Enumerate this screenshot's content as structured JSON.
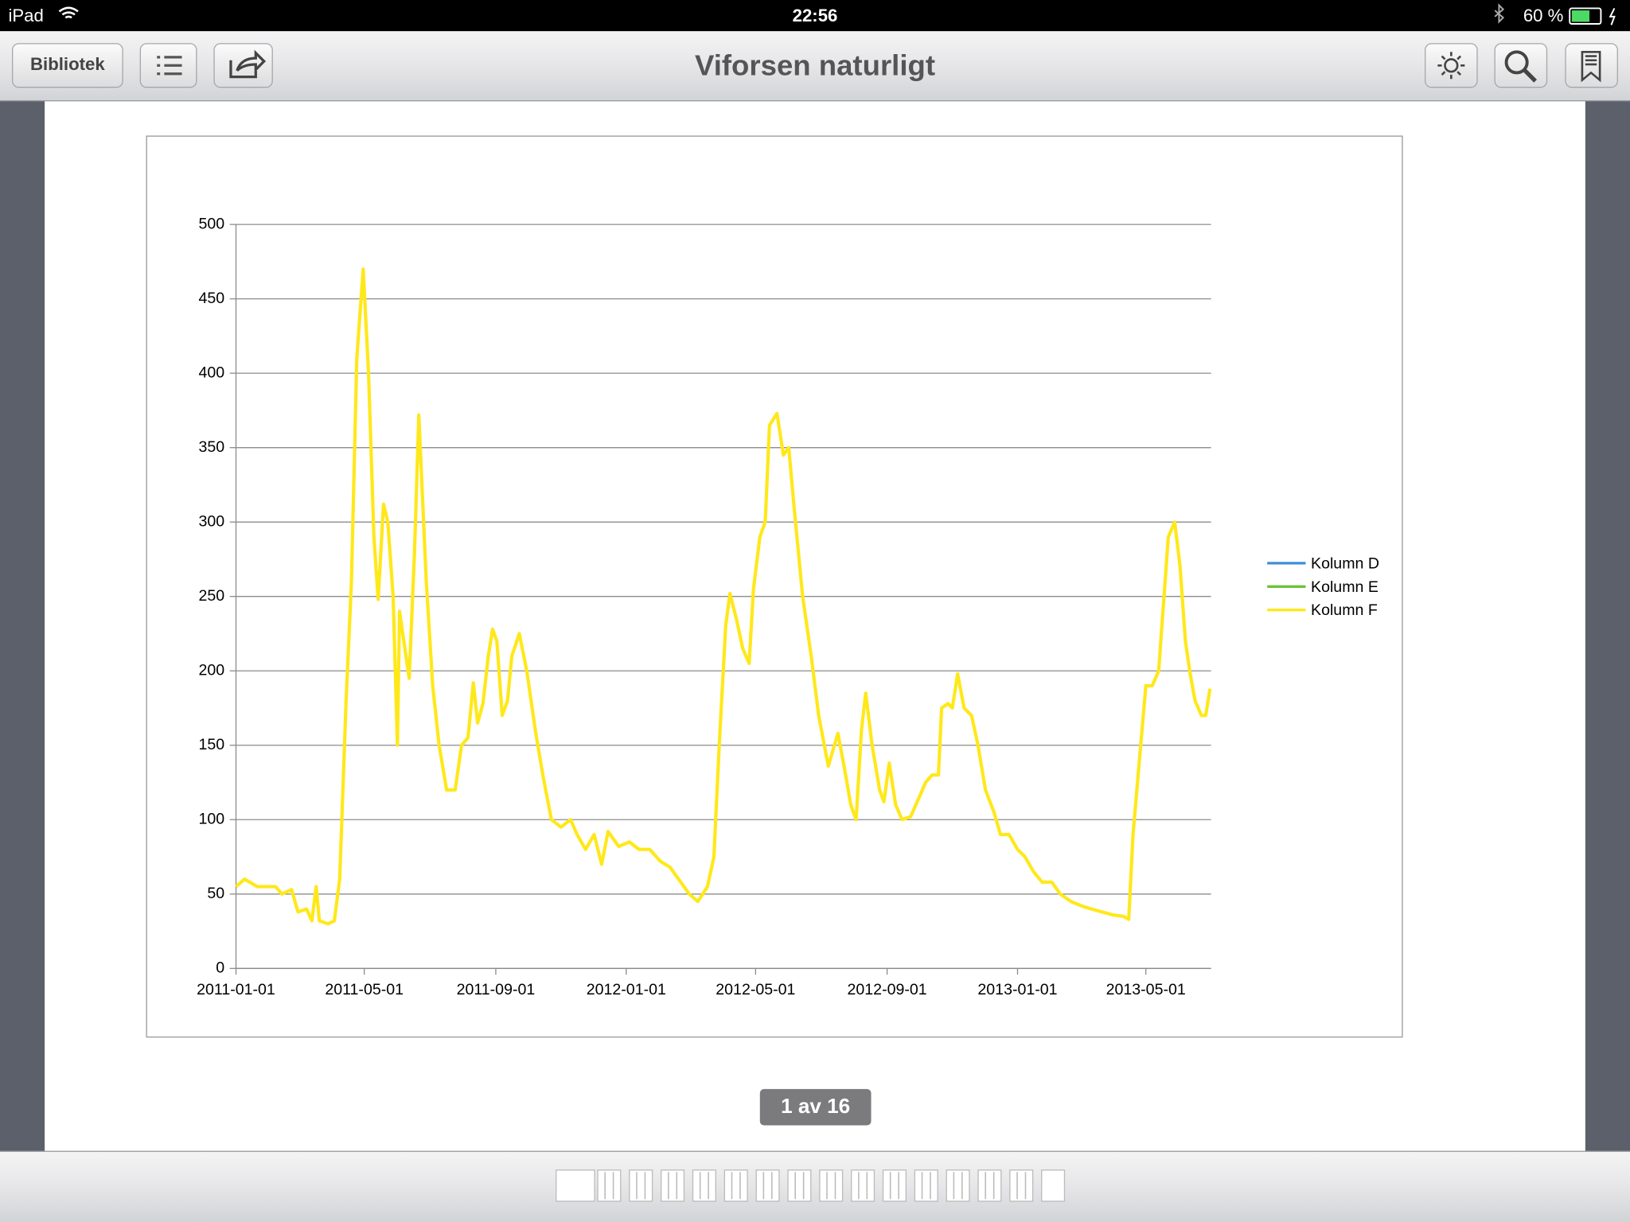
{
  "status_bar": {
    "device": "iPad",
    "time": "22:56",
    "battery": "60 %"
  },
  "toolbar": {
    "library_button": "Bibliotek",
    "title": "Viforsen naturligt"
  },
  "chart_data": {
    "type": "line",
    "x": [
      "2011-01-01",
      "2011-01-09",
      "2011-01-21",
      "2011-02-07",
      "2011-02-13",
      "2011-02-22",
      "2011-02-28",
      "2011-03-08",
      "2011-03-13",
      "2011-03-17",
      "2011-03-20",
      "2011-03-28",
      "2011-04-03",
      "2011-04-08",
      "2011-04-14",
      "2011-04-19",
      "2011-04-24",
      "2011-04-30",
      "2011-05-05",
      "2011-05-10",
      "2011-05-14",
      "2011-05-19",
      "2011-05-23",
      "2011-05-28",
      "2011-06-01",
      "2011-06-03",
      "2011-06-08",
      "2011-06-12",
      "2011-06-17",
      "2011-06-21",
      "2011-06-28",
      "2011-07-04",
      "2011-07-10",
      "2011-07-17",
      "2011-07-25",
      "2011-07-31",
      "2011-08-06",
      "2011-08-11",
      "2011-08-15",
      "2011-08-20",
      "2011-08-25",
      "2011-08-29",
      "2011-09-02",
      "2011-09-07",
      "2011-09-12",
      "2011-09-16",
      "2011-09-23",
      "2011-09-30",
      "2011-10-08",
      "2011-10-15",
      "2011-10-23",
      "2011-11-01",
      "2011-11-10",
      "2011-11-16",
      "2011-11-24",
      "2011-12-02",
      "2011-12-09",
      "2011-12-15",
      "2011-12-25",
      "2012-01-04",
      "2012-01-13",
      "2012-01-23",
      "2012-02-02",
      "2012-02-11",
      "2012-02-21",
      "2012-02-29",
      "2012-03-08",
      "2012-03-17",
      "2012-03-23",
      "2012-03-28",
      "2012-04-03",
      "2012-04-07",
      "2012-04-13",
      "2012-04-19",
      "2012-04-25",
      "2012-04-29",
      "2012-05-05",
      "2012-05-10",
      "2012-05-14",
      "2012-05-21",
      "2012-05-27",
      "2012-06-01",
      "2012-06-06",
      "2012-06-14",
      "2012-06-22",
      "2012-06-29",
      "2012-07-08",
      "2012-07-17",
      "2012-07-23",
      "2012-07-29",
      "2012-08-03",
      "2012-08-08",
      "2012-08-12",
      "2012-08-18",
      "2012-08-25",
      "2012-08-29",
      "2012-09-03",
      "2012-09-09",
      "2012-09-15",
      "2012-09-23",
      "2012-10-01",
      "2012-10-07",
      "2012-10-13",
      "2012-10-19",
      "2012-10-22",
      "2012-10-28",
      "2012-11-01",
      "2012-11-06",
      "2012-11-12",
      "2012-11-19",
      "2012-11-25",
      "2012-12-02",
      "2012-12-10",
      "2012-12-16",
      "2012-12-24",
      "2013-01-01",
      "2013-01-08",
      "2013-01-16",
      "2013-01-24",
      "2013-02-02",
      "2013-02-10",
      "2013-02-20",
      "2013-03-02",
      "2013-03-11",
      "2013-03-21",
      "2013-03-31",
      "2013-04-10",
      "2013-04-15",
      "2013-04-19",
      "2013-04-25",
      "2013-05-01",
      "2013-05-07",
      "2013-05-13",
      "2013-05-17",
      "2013-05-22",
      "2013-05-28",
      "2013-06-02",
      "2013-06-07",
      "2013-06-11",
      "2013-06-16",
      "2013-06-22",
      "2013-06-26",
      "2013-06-30"
    ],
    "series": [
      {
        "name": "Kolumn D",
        "color": "#3d8fd6",
        "values": [
          null,
          null,
          null,
          null,
          null,
          null,
          null,
          null,
          null,
          null,
          null,
          null,
          null,
          null,
          null,
          null,
          null,
          null,
          null,
          null,
          null,
          null,
          null,
          null,
          null,
          null,
          null,
          null,
          null,
          null,
          null,
          null,
          null,
          null,
          null,
          null,
          null,
          null,
          null,
          null,
          null,
          null,
          null,
          null,
          null,
          null,
          null,
          null,
          null,
          null,
          null,
          null,
          null,
          null,
          null,
          null,
          null,
          null,
          null,
          null,
          null,
          null,
          null,
          null,
          null,
          null,
          null,
          null,
          null,
          null,
          null,
          null,
          null,
          null,
          null,
          null,
          null,
          null,
          null,
          null,
          null,
          null,
          null,
          null,
          null,
          null,
          null,
          null,
          null,
          null,
          null,
          null,
          null,
          null,
          null,
          null,
          null,
          null,
          null,
          null,
          null,
          null,
          null,
          null,
          null,
          null,
          null,
          null,
          null,
          null,
          null,
          null,
          null,
          null,
          null,
          null,
          null,
          null,
          null,
          null,
          null,
          null,
          null,
          null,
          null,
          null,
          null,
          null,
          null,
          null,
          null,
          null,
          null,
          null,
          null,
          null,
          null,
          null,
          null,
          null,
          null,
          null,
          null
        ]
      },
      {
        "name": "Kolumn E",
        "color": "#6cc23a",
        "values": [
          null,
          null,
          null,
          null,
          null,
          null,
          null,
          null,
          null,
          null,
          null,
          null,
          null,
          null,
          null,
          null,
          null,
          null,
          null,
          null,
          null,
          null,
          null,
          null,
          null,
          null,
          null,
          null,
          null,
          null,
          null,
          null,
          null,
          null,
          null,
          null,
          null,
          null,
          null,
          null,
          null,
          null,
          null,
          null,
          null,
          null,
          null,
          null,
          null,
          null,
          null,
          null,
          null,
          null,
          null,
          null,
          null,
          null,
          null,
          null,
          null,
          null,
          null,
          null,
          null,
          null,
          null,
          null,
          null,
          null,
          null,
          null,
          null,
          null,
          null,
          null,
          null,
          null,
          null,
          null,
          null,
          null,
          null,
          null,
          null,
          null,
          null,
          null,
          null,
          null,
          null,
          null,
          null,
          null,
          null,
          null,
          null,
          null,
          null,
          null,
          null,
          null,
          null,
          null,
          null,
          null,
          null,
          null,
          null,
          null,
          null,
          null,
          null,
          null,
          null,
          null,
          null,
          null,
          null,
          null,
          null,
          null,
          null,
          null,
          null,
          null,
          null,
          null,
          null,
          null,
          null,
          null,
          null,
          null,
          null,
          null,
          null,
          null,
          null,
          null,
          null,
          null,
          null
        ]
      },
      {
        "name": "Kolumn F",
        "color": "#ffe81a",
        "values": [
          55,
          60,
          55,
          55,
          50,
          53,
          38,
          40,
          32,
          55,
          32,
          30,
          32,
          60,
          180,
          260,
          410,
          470,
          400,
          290,
          248,
          312,
          300,
          250,
          150,
          240,
          215,
          195,
          280,
          372,
          260,
          190,
          150,
          120,
          120,
          150,
          155,
          192,
          165,
          178,
          210,
          228,
          220,
          170,
          180,
          210,
          225,
          200,
          160,
          130,
          100,
          95,
          100,
          90,
          80,
          90,
          70,
          92,
          82,
          85,
          80,
          80,
          72,
          68,
          58,
          50,
          45,
          55,
          75,
          150,
          230,
          252,
          235,
          215,
          205,
          255,
          290,
          300,
          365,
          373,
          345,
          350,
          310,
          250,
          210,
          170,
          136,
          158,
          135,
          110,
          100,
          160,
          185,
          150,
          120,
          112,
          138,
          110,
          100,
          102,
          115,
          125,
          130,
          130,
          175,
          178,
          175,
          198,
          175,
          170,
          150,
          120,
          105,
          90,
          90,
          80,
          75,
          65,
          58,
          58,
          50,
          45,
          42,
          40,
          38,
          36,
          35,
          33,
          90,
          140,
          190,
          190,
          200,
          240,
          290,
          300,
          270,
          220,
          200,
          180,
          170,
          170,
          188
        ]
      }
    ],
    "xlim": [
      "2011-01-01",
      "2013-07-01"
    ],
    "xticks": [
      "2011-01-01",
      "2011-05-01",
      "2011-09-01",
      "2012-01-01",
      "2012-05-01",
      "2012-09-01",
      "2013-01-01",
      "2013-05-01"
    ],
    "ylim": [
      0,
      500
    ],
    "yticks": [
      0,
      50,
      100,
      150,
      200,
      250,
      300,
      350,
      400,
      450,
      500
    ],
    "grid": true,
    "legend": "right"
  },
  "page_indicator": "1 av 16"
}
